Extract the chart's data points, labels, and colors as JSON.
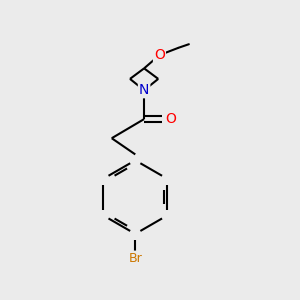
{
  "bg_color": "#ebebeb",
  "bond_color": "#000000",
  "bond_width": 1.5,
  "atom_colors": {
    "O": "#ff0000",
    "N": "#0000cc",
    "Br": "#cc7700",
    "C": "#000000"
  },
  "fig_width": 3.0,
  "fig_height": 3.0,
  "dpi": 100,
  "xlim": [
    0,
    10
  ],
  "ylim": [
    0,
    10
  ]
}
